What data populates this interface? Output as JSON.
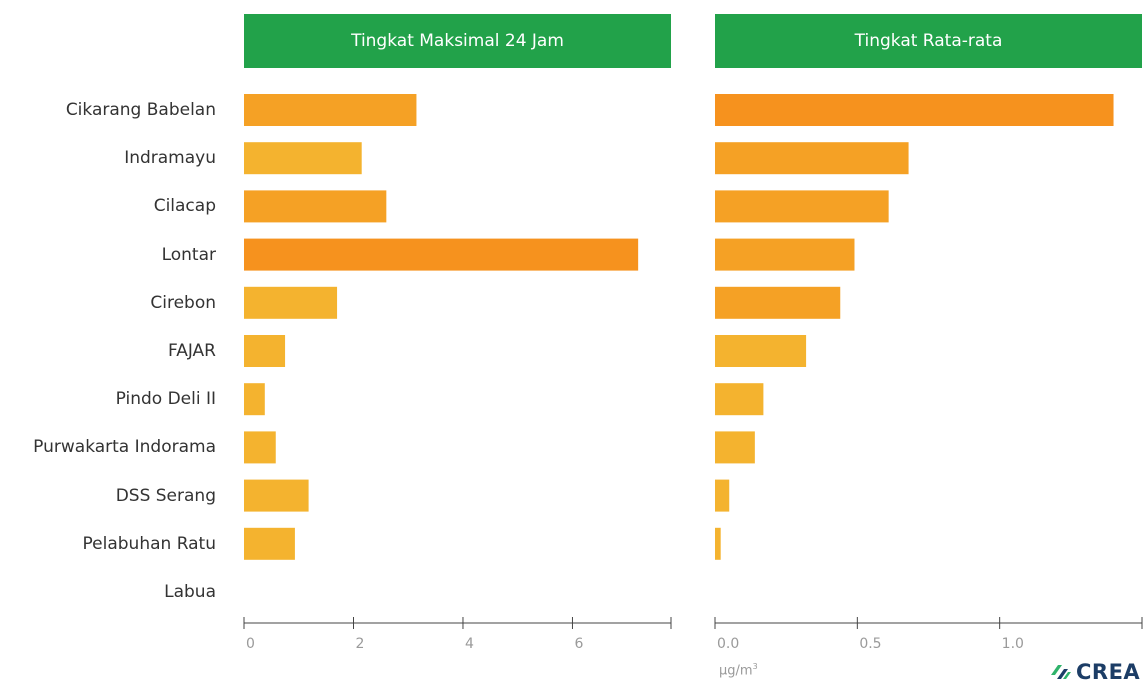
{
  "panels": {
    "left_title": "Tingkat Maksimal 24 Jam",
    "right_title": "Tingkat Rata-rata"
  },
  "unit": {
    "base": "μg/m",
    "exp": "3"
  },
  "logo": {
    "text": "CREA",
    "icon": "crea-logo-mark"
  },
  "colors": {
    "header": "#22a24a",
    "bar_dark": "#f6921e",
    "bar_mid": "#f5a125",
    "bar_light": "#f4b32f",
    "axis": "#444444",
    "tick_label": "#9a9a9a"
  },
  "chart_data": [
    {
      "type": "bar",
      "orientation": "horizontal",
      "title": "Tingkat Maksimal 24 Jam",
      "categories": [
        "Cikarang Babelan",
        "Indramayu",
        "Cilacap",
        "Lontar",
        "Cirebon",
        "FAJAR",
        "Pindo Deli II",
        "Purwakarta Indorama",
        "DSS Serang",
        "Pelabuhan Ratu",
        "Labua"
      ],
      "values": [
        3.15,
        2.15,
        2.6,
        7.2,
        1.7,
        0.75,
        0.38,
        0.58,
        1.18,
        0.93,
        0
      ],
      "xlim": [
        0,
        7.8
      ],
      "ticks": [
        0,
        2,
        4,
        6
      ],
      "tick_labels": [
        "0",
        "2",
        "4",
        "6"
      ],
      "grid": false
    },
    {
      "type": "bar",
      "orientation": "horizontal",
      "title": "Tingkat Rata-rata",
      "categories": [
        "Cikarang Babelan",
        "Indramayu",
        "Cilacap",
        "Lontar",
        "Cirebon",
        "FAJAR",
        "Pindo Deli II",
        "Purwakarta Indorama",
        "DSS Serang",
        "Pelabuhan Ratu",
        "Labua"
      ],
      "values": [
        1.4,
        0.68,
        0.61,
        0.49,
        0.44,
        0.32,
        0.17,
        0.14,
        0.05,
        0.02,
        0
      ],
      "xlim": [
        0,
        1.5
      ],
      "ticks": [
        0,
        0.5,
        1.0
      ],
      "tick_labels": [
        "0.0",
        "0.5",
        "1.0"
      ],
      "xlabel": "μg/m³",
      "grid": false
    }
  ]
}
